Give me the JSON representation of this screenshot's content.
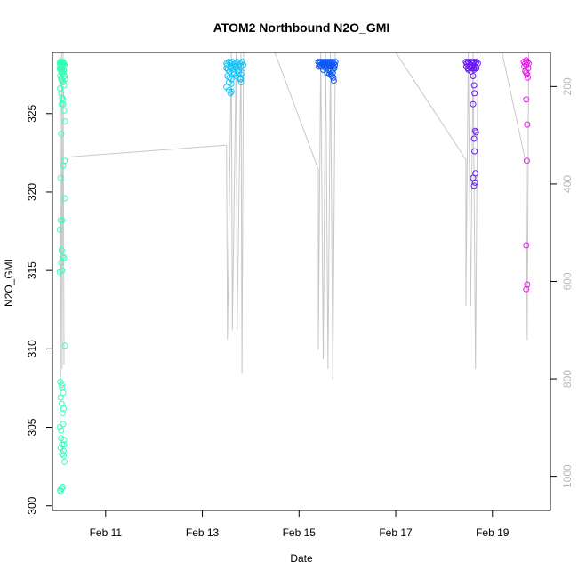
{
  "chart_data": {
    "type": "scatter",
    "title": "ATOM2 Northbound N2O_GMI",
    "xlabel": "Date",
    "ylabel": "N2O_GMI",
    "x_ticks": [
      "Feb 11",
      "Feb 13",
      "Feb 15",
      "Feb 17",
      "Feb 19"
    ],
    "x_tick_values": [
      11,
      13,
      15,
      17,
      19
    ],
    "y_ticks": [
      300,
      305,
      310,
      315,
      320,
      325
    ],
    "y_ticks_right": [
      200,
      400,
      600,
      800,
      1000
    ],
    "xlim": [
      9.9,
      20.2
    ],
    "ylim": [
      299.7,
      328.9
    ],
    "right_axis_lim": [
      1070,
      130
    ],
    "series": [
      {
        "color": "#33FFB5",
        "x": [
          10.05,
          10.06,
          10.07,
          10.08,
          10.09,
          10.1,
          10.11,
          10.12,
          10.13,
          10.14,
          10.15,
          10.05,
          10.06,
          10.07,
          10.08,
          10.09,
          10.1,
          10.11,
          10.12,
          10.13,
          10.14,
          10.15,
          10.06,
          10.08,
          10.1,
          10.12,
          10.14,
          10.16,
          10.06,
          10.08,
          10.1,
          10.12,
          10.14,
          10.16,
          10.09,
          10.12,
          10.15,
          10.08,
          10.12,
          10.16,
          10.07,
          10.1,
          10.14,
          10.16,
          10.05,
          10.07,
          10.09,
          10.11,
          10.08,
          10.05,
          10.1,
          10.06,
          10.09,
          10.12,
          10.05,
          10.08,
          10.14,
          10.07,
          10.1,
          10.13,
          10.15,
          10.06,
          10.09,
          10.07,
          10.11,
          10.1,
          10.13,
          10.08,
          10.12,
          10.14,
          10.07,
          10.09,
          10.11,
          10.13,
          10.1
        ],
        "y": [
          328.2,
          328.3,
          328.1,
          328.2,
          328.3,
          328.2,
          328.1,
          328.3,
          328.2,
          328.2,
          328.1,
          327.9,
          327.8,
          327.9,
          327.7,
          327.8,
          327.9,
          327.6,
          327.5,
          327.8,
          327.7,
          327.4,
          327.4,
          327.2,
          327.1,
          327.0,
          326.8,
          327.2,
          326.6,
          326.3,
          326.0,
          325.6,
          325.2,
          324.5,
          325.6,
          325.9,
          322.0,
          323.7,
          321.7,
          319.6,
          320.9,
          318.2,
          315.8,
          310.2,
          317.6,
          318.2,
          316.3,
          315.9,
          315.5,
          314.9,
          315.0,
          307.9,
          307.7,
          307.2,
          305.0,
          304.8,
          304.2,
          303.7,
          303.3,
          303.5,
          302.8,
          301.0,
          301.1,
          300.9,
          301.2,
          303.9,
          303.2,
          304.3,
          305.2,
          303.9,
          306.9,
          306.5,
          305.9,
          306.2,
          307.5
        ]
      },
      {
        "color": "#14C3F5",
        "x": [
          13.5,
          13.52,
          13.55,
          13.58,
          13.6,
          13.62,
          13.65,
          13.68,
          13.7,
          13.72,
          13.75,
          13.78,
          13.8,
          13.82,
          13.85,
          13.5,
          13.53,
          13.56,
          13.6,
          13.63,
          13.66,
          13.7,
          13.73,
          13.76,
          13.8,
          13.83,
          13.52,
          13.56,
          13.6,
          13.65,
          13.7,
          13.75,
          13.8,
          13.55,
          13.6,
          13.78,
          13.8,
          13.5,
          13.55,
          13.6,
          13.58
        ],
        "y": [
          328.2,
          328.1,
          328.3,
          328.2,
          328.0,
          328.3,
          328.1,
          328.2,
          328.0,
          328.3,
          328.1,
          328.2,
          328.0,
          328.3,
          328.1,
          327.9,
          327.8,
          327.7,
          327.9,
          327.8,
          327.6,
          327.9,
          327.7,
          327.8,
          327.5,
          327.6,
          327.4,
          327.3,
          327.2,
          327.5,
          327.4,
          327.6,
          327.2,
          327.0,
          326.9,
          327.2,
          327.0,
          326.7,
          326.5,
          326.4,
          326.3
        ]
      },
      {
        "color": "#0F55F5",
        "x": [
          15.4,
          15.42,
          15.45,
          15.48,
          15.5,
          15.52,
          15.55,
          15.58,
          15.6,
          15.62,
          15.65,
          15.68,
          15.7,
          15.72,
          15.75,
          15.41,
          15.44,
          15.47,
          15.5,
          15.53,
          15.56,
          15.59,
          15.62,
          15.65,
          15.68,
          15.71,
          15.74,
          15.5,
          15.55,
          15.6,
          15.65,
          15.7,
          15.73,
          15.58,
          15.63,
          15.68,
          15.71,
          15.72,
          15.66,
          15.7
        ],
        "y": [
          328.3,
          328.2,
          328.3,
          328.2,
          328.3,
          328.2,
          328.3,
          328.2,
          328.3,
          328.2,
          328.3,
          328.2,
          328.3,
          328.2,
          328.3,
          328.0,
          328.1,
          328.0,
          328.1,
          328.0,
          328.1,
          328.0,
          328.1,
          328.0,
          328.1,
          328.0,
          328.1,
          327.8,
          327.9,
          327.8,
          327.7,
          327.8,
          327.9,
          327.6,
          327.5,
          327.4,
          327.3,
          327.1,
          327.5,
          327.6
        ]
      },
      {
        "color": "#6A1AF0",
        "x": [
          18.45,
          18.47,
          18.5,
          18.52,
          18.55,
          18.57,
          18.6,
          18.62,
          18.65,
          18.67,
          18.7,
          18.46,
          18.49,
          18.52,
          18.55,
          18.58,
          18.61,
          18.64,
          18.67,
          18.5,
          18.56,
          18.62,
          18.66,
          18.6,
          18.62,
          18.63,
          18.6,
          18.64,
          18.62,
          18.66,
          18.63,
          18.65,
          18.64,
          18.6,
          18.62
        ],
        "y": [
          328.3,
          328.2,
          328.3,
          328.2,
          328.1,
          328.3,
          328.2,
          328.3,
          328.2,
          328.3,
          328.2,
          328.0,
          327.9,
          328.0,
          327.9,
          328.0,
          327.9,
          328.0,
          327.9,
          327.8,
          327.7,
          327.8,
          327.9,
          327.4,
          326.8,
          326.3,
          325.6,
          323.9,
          323.4,
          323.8,
          322.6,
          321.2,
          320.6,
          320.9,
          320.4
        ]
      },
      {
        "color": "#E61AE6",
        "x": [
          19.65,
          19.68,
          19.7,
          19.72,
          19.75,
          19.66,
          19.7,
          19.74,
          19.68,
          19.72,
          19.7,
          19.73,
          19.7,
          19.72,
          19.71,
          19.7,
          19.72,
          19.7
        ],
        "y": [
          328.3,
          328.2,
          328.4,
          328.3,
          328.2,
          328.0,
          328.1,
          327.9,
          327.7,
          327.5,
          327.6,
          327.3,
          325.9,
          324.3,
          322.0,
          316.6,
          314.1,
          313.8
        ]
      }
    ],
    "altitude_track": {
      "segments": [
        {
          "x": [
            10.05,
            10.07,
            10.09,
            10.1,
            10.12,
            10.14
          ],
          "alt": [
            130,
            820,
            130,
            780,
            130,
            770
          ]
        },
        {
          "x": [
            10.16,
            13.5
          ],
          "alt": [
            345,
            320
          ]
        },
        {
          "x": [
            13.5,
            13.52,
            13.6,
            13.62,
            13.7,
            13.72,
            13.8,
            13.82,
            13.85
          ],
          "alt": [
            320,
            720,
            130,
            700,
            130,
            700,
            130,
            790,
            130
          ]
        },
        {
          "x": [
            14.5,
            15.4,
            15.4,
            15.45,
            15.5,
            15.55,
            15.6,
            15.65,
            15.7,
            15.75
          ],
          "alt": [
            130,
            370,
            740,
            130,
            760,
            130,
            780,
            130,
            800,
            130
          ]
        },
        {
          "x": [
            17.0,
            18.45,
            18.45,
            18.5,
            18.55,
            18.6,
            18.65,
            18.7
          ],
          "alt": [
            130,
            350,
            650,
            130,
            650,
            130,
            780,
            130
          ]
        },
        {
          "x": [
            19.2,
            19.7,
            19.72,
            19.75
          ],
          "alt": [
            130,
            360,
            720,
            130
          ]
        }
      ]
    },
    "grid": false,
    "legend": "none"
  }
}
